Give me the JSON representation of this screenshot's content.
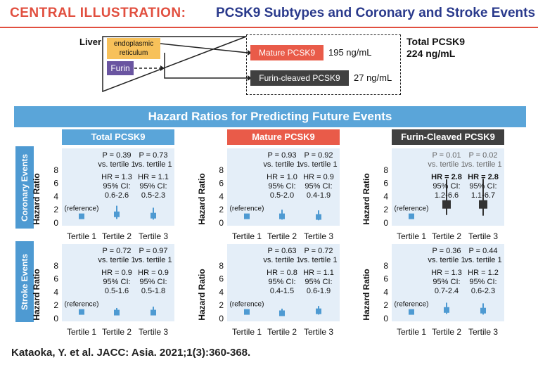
{
  "header": {
    "kicker": "CENTRAL ILLUSTRATION:",
    "title": "PCSK9 Subtypes and Coronary and Stroke Events"
  },
  "diagram": {
    "liver_label": "Liver",
    "er_label": "endoplasmic reticulum",
    "furin_label": "Furin",
    "mature_label": "Mature PCSK9",
    "mature_value": "195 ng/mL",
    "furin_cleaved_label": "Furin-cleaved PCSK9",
    "furin_cleaved_value": "27 ng/mL",
    "total_label": "Total PCSK9",
    "total_value": "224 ng/mL"
  },
  "banner": "Hazard Ratios for Predicting Future Events",
  "columns": [
    {
      "label": "Total PCSK9",
      "color": "#5aa5d9"
    },
    {
      "label": "Mature PCSK9",
      "color": "#e95b49"
    },
    {
      "label": "Furin-Cleaved PCSK9",
      "color": "#404040"
    }
  ],
  "rows": [
    {
      "label": "Coronary Events"
    },
    {
      "label": "Stroke Events"
    }
  ],
  "axis": {
    "ylabel": "Hazard Ratio",
    "yticks": [
      "0",
      "2",
      "4",
      "6",
      "8"
    ],
    "categories": [
      "Tertile 1",
      "Tertile 2",
      "Tertile 3"
    ],
    "reference_label": "(reference)",
    "vs_label": "vs. tertile 1",
    "ci_label": "95% CI:"
  },
  "chart_data": [
    {
      "type": "scatter",
      "row": "Coronary Events",
      "column": "Total PCSK9",
      "ylim": [
        0,
        10
      ],
      "points": [
        {
          "x": "Tertile 1",
          "hr": 1.0,
          "lo": 1.0,
          "hi": 1.0,
          "p": "",
          "hr_text": "",
          "ci_text": ""
        },
        {
          "x": "Tertile 2",
          "hr": 1.3,
          "lo": 0.6,
          "hi": 2.6,
          "p": "P = 0.39",
          "hr_text": "HR = 1.3",
          "ci_text": "0.6-2.6"
        },
        {
          "x": "Tertile 3",
          "hr": 1.1,
          "lo": 0.5,
          "hi": 2.3,
          "p": "P = 0.73",
          "hr_text": "HR = 1.1",
          "ci_text": "0.5-2.3"
        }
      ]
    },
    {
      "type": "scatter",
      "row": "Coronary Events",
      "column": "Mature PCSK9",
      "ylim": [
        0,
        10
      ],
      "points": [
        {
          "x": "Tertile 1",
          "hr": 1.0,
          "lo": 1.0,
          "hi": 1.0,
          "p": "",
          "hr_text": "",
          "ci_text": ""
        },
        {
          "x": "Tertile 2",
          "hr": 1.0,
          "lo": 0.5,
          "hi": 2.0,
          "p": "P = 0.93",
          "hr_text": "HR = 1.0",
          "ci_text": "0.5-2.0"
        },
        {
          "x": "Tertile 3",
          "hr": 0.9,
          "lo": 0.4,
          "hi": 1.9,
          "p": "P = 0.92",
          "hr_text": "HR = 0.9",
          "ci_text": "0.4-1.9"
        }
      ]
    },
    {
      "type": "scatter",
      "row": "Coronary Events",
      "column": "Furin-Cleaved PCSK9",
      "ylim": [
        0,
        10
      ],
      "points": [
        {
          "x": "Tertile 1",
          "hr": 1.0,
          "lo": 1.0,
          "hi": 1.0,
          "p": "",
          "hr_text": "",
          "ci_text": ""
        },
        {
          "x": "Tertile 2",
          "hr": 2.8,
          "lo": 1.2,
          "hi": 6.6,
          "p": "P = 0.01",
          "hr_text": "HR = 2.8",
          "ci_text": "1.2-6.6",
          "bold": true
        },
        {
          "x": "Tertile 3",
          "hr": 2.8,
          "lo": 1.1,
          "hi": 6.7,
          "p": "P = 0.02",
          "hr_text": "HR = 2.8",
          "ci_text": "1.1-6.7",
          "bold": true
        }
      ]
    },
    {
      "type": "scatter",
      "row": "Stroke Events",
      "column": "Total PCSK9",
      "ylim": [
        0,
        10
      ],
      "points": [
        {
          "x": "Tertile 1",
          "hr": 1.0,
          "lo": 1.0,
          "hi": 1.0,
          "p": "",
          "hr_text": "",
          "ci_text": ""
        },
        {
          "x": "Tertile 2",
          "hr": 0.9,
          "lo": 0.5,
          "hi": 1.6,
          "p": "P = 0.72",
          "hr_text": "HR = 0.9",
          "ci_text": "0.5-1.6"
        },
        {
          "x": "Tertile 3",
          "hr": 0.9,
          "lo": 0.5,
          "hi": 1.8,
          "p": "P = 0.97",
          "hr_text": "HR = 0.9",
          "ci_text": "0.5-1.8"
        }
      ]
    },
    {
      "type": "scatter",
      "row": "Stroke Events",
      "column": "Mature PCSK9",
      "ylim": [
        0,
        10
      ],
      "points": [
        {
          "x": "Tertile 1",
          "hr": 1.0,
          "lo": 1.0,
          "hi": 1.0,
          "p": "",
          "hr_text": "",
          "ci_text": ""
        },
        {
          "x": "Tertile 2",
          "hr": 0.8,
          "lo": 0.4,
          "hi": 1.5,
          "p": "P = 0.63",
          "hr_text": "HR = 0.8",
          "ci_text": "0.4-1.5"
        },
        {
          "x": "Tertile 3",
          "hr": 1.1,
          "lo": 0.6,
          "hi": 1.9,
          "p": "P = 0.72",
          "hr_text": "HR = 1.1",
          "ci_text": "0.6-1.9"
        }
      ]
    },
    {
      "type": "scatter",
      "row": "Stroke Events",
      "column": "Furin-Cleaved PCSK9",
      "ylim": [
        0,
        10
      ],
      "points": [
        {
          "x": "Tertile 1",
          "hr": 1.0,
          "lo": 1.0,
          "hi": 1.0,
          "p": "",
          "hr_text": "",
          "ci_text": ""
        },
        {
          "x": "Tertile 2",
          "hr": 1.3,
          "lo": 0.7,
          "hi": 2.4,
          "p": "P = 0.36",
          "hr_text": "HR = 1.3",
          "ci_text": "0.7-2.4"
        },
        {
          "x": "Tertile 3",
          "hr": 1.2,
          "lo": 0.6,
          "hi": 2.3,
          "p": "P = 0.44",
          "hr_text": "HR = 1.2",
          "ci_text": "0.6-2.3"
        }
      ]
    }
  ],
  "colors": {
    "marker": "#4e9ad2",
    "marker_dark": "#333333",
    "p_muted": "#666666"
  },
  "citation": "Kataoka, Y. et al. JACC: Asia. 2021;1(3):360-368."
}
